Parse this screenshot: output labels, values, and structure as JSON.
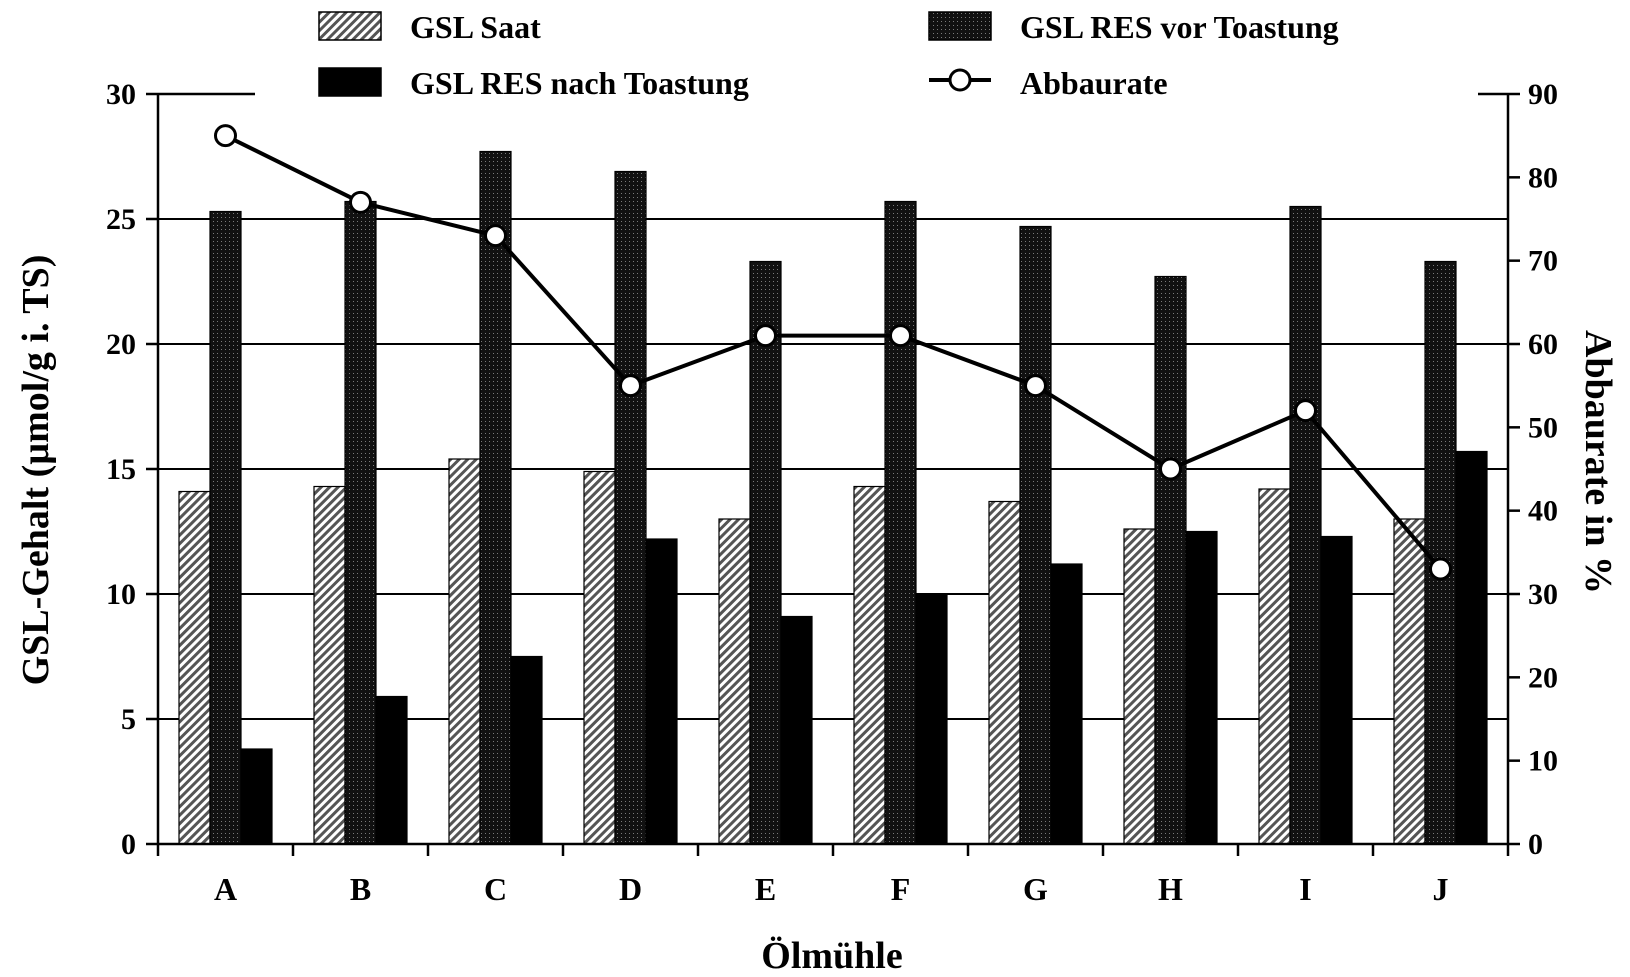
{
  "chart_data": {
    "type": "bar",
    "title": "",
    "xlabel": "Ölmühle",
    "ylabel": "GSL-Gehalt (µmol/g i. TS)",
    "y2label": "Abbaurate in %",
    "categories": [
      "A",
      "B",
      "C",
      "D",
      "E",
      "F",
      "G",
      "H",
      "I",
      "J"
    ],
    "ylim": [
      0,
      30
    ],
    "y2lim": [
      0,
      90
    ],
    "yticks": [
      0,
      5,
      10,
      15,
      20,
      25,
      30
    ],
    "y2ticks": [
      0,
      10,
      20,
      30,
      40,
      50,
      60,
      70,
      80,
      90
    ],
    "grid": "horizontal",
    "legend_position": "top",
    "series": [
      {
        "name": "GSL Saat",
        "kind": "bar",
        "pattern": "hatched",
        "values": [
          14.1,
          14.3,
          15.4,
          14.9,
          13.0,
          14.3,
          13.7,
          12.6,
          14.2,
          13.0
        ]
      },
      {
        "name": "GSL RES vor Toastung",
        "kind": "bar",
        "pattern": "dotted-dark",
        "values": [
          25.3,
          25.7,
          27.7,
          26.9,
          23.3,
          25.7,
          24.7,
          22.7,
          25.5,
          23.3
        ]
      },
      {
        "name": "GSL RES nach Toastung",
        "kind": "bar",
        "pattern": "solid-black",
        "values": [
          3.8,
          5.9,
          7.5,
          12.2,
          9.1,
          10.0,
          11.2,
          12.5,
          12.3,
          15.7
        ]
      },
      {
        "name": "Abbaurate",
        "kind": "line",
        "axis": "right",
        "marker": "open-circle",
        "values": [
          85,
          77,
          73,
          55,
          61,
          61,
          55,
          45,
          52,
          33
        ]
      }
    ]
  }
}
